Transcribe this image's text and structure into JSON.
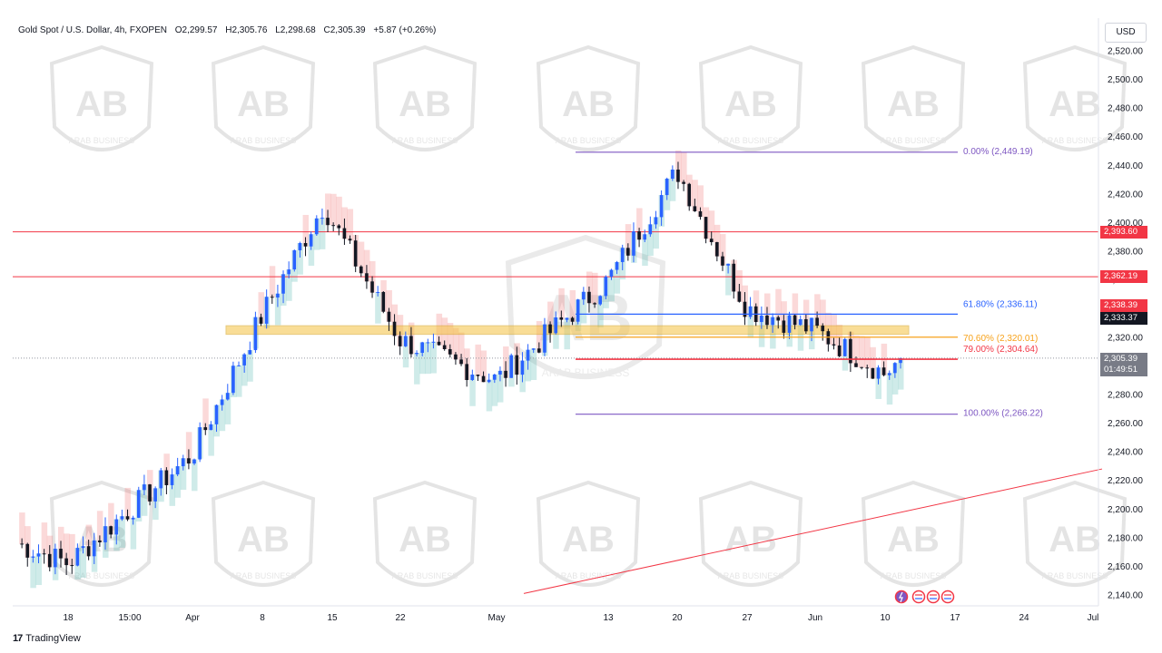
{
  "header": {
    "symbol": "Gold Spot / U.S. Dollar, 4h, FXOPEN",
    "open": "O2,299.57",
    "high": "H2,305.76",
    "low": "L2,298.68",
    "close": "C2,305.39",
    "change": "+5.87 (+0.26%)"
  },
  "currency_button": "USD",
  "y_axis_ticks": [
    "2,520.00",
    "2,500.00",
    "2,480.00",
    "2,460.00",
    "2,440.00",
    "2,420.00",
    "2,400.00",
    "2,380.00",
    "2,360.00",
    "2,340.00",
    "2,320.00",
    "2,300.00",
    "2,280.00",
    "2,260.00",
    "2,240.00",
    "2,220.00",
    "2,200.00",
    "2,180.00",
    "2,160.00",
    "2,140.00"
  ],
  "x_axis_ticks": [
    "18",
    "15:00",
    "Apr",
    "8",
    "15",
    "22",
    "May",
    "13",
    "20",
    "27",
    "Jun",
    "10",
    "17",
    "24",
    "Jul"
  ],
  "price_badges": {
    "level_1": "2,393.60",
    "level_2": "2,362.19",
    "indicator": "2,338.39",
    "crosshair": "2,333.37",
    "last_price": "2,305.39",
    "countdown": "01:49:51"
  },
  "fib_labels": {
    "f0": "0.00% (2,449.19)",
    "f618": "61.80% (2,336.11)",
    "f706": "70.60% (2,320.01)",
    "f79": "79.00% (2,304.64)",
    "f100": "100.00% (2,266.22)"
  },
  "watermark_text": "ARAB BUSINESS",
  "footer": {
    "logo": "17",
    "brand": "TradingView"
  },
  "colors": {
    "resistance": "#f23645",
    "fib_blue": "#2962ff",
    "fib_orange": "#f7a21b",
    "fib_purple": "#7e57c2",
    "up_candle": "#2962ff",
    "down_candle": "#131722",
    "cloud_up": "#26a69a",
    "cloud_down": "#ef5350",
    "zone": "#f5c242"
  },
  "chart_data": {
    "type": "candlestick",
    "title": "Gold Spot / U.S. Dollar, 4h, FXOPEN",
    "ylim": [
      2132,
      2530
    ],
    "y_ticks": [
      2520,
      2500,
      2480,
      2460,
      2440,
      2420,
      2400,
      2380,
      2360,
      2340,
      2320,
      2300,
      2280,
      2260,
      2240,
      2220,
      2200,
      2180,
      2160,
      2140
    ],
    "anchors": [
      {
        "label": "start",
        "v": 2176
      },
      {
        "label": "18",
        "v": 2162
      },
      {
        "label": "15:00",
        "v": 2200
      },
      {
        "label": "Apr",
        "v": 2238
      },
      {
        "label": "8",
        "v": 2336
      },
      {
        "label": "15",
        "v": 2412
      },
      {
        "label": "22",
        "v": 2318
      },
      {
        "label": "May",
        "v": 2290
      },
      {
        "label": "13",
        "v": 2360
      },
      {
        "label": "20",
        "v": 2436
      },
      {
        "label": "27",
        "v": 2340
      },
      {
        "label": "Jun",
        "v": 2325
      },
      {
        "label": "10",
        "v": 2294
      },
      {
        "label": "last",
        "v": 2305.39
      }
    ],
    "horizontal_levels": [
      2393.6,
      2362.19
    ],
    "zone": [
      2322,
      2328
    ],
    "fibonacci": [
      {
        "ratio": "0.00%",
        "price": 2449.19
      },
      {
        "ratio": "61.80%",
        "price": 2336.11
      },
      {
        "ratio": "70.60%",
        "price": 2320.01
      },
      {
        "ratio": "79.00%",
        "price": 2304.64
      },
      {
        "ratio": "100.00%",
        "price": 2266.22
      }
    ],
    "trendline": [
      {
        "x": "May",
        "price": 2141
      },
      {
        "x": "Jul",
        "price": 2228
      }
    ],
    "last_price": 2305.39
  }
}
